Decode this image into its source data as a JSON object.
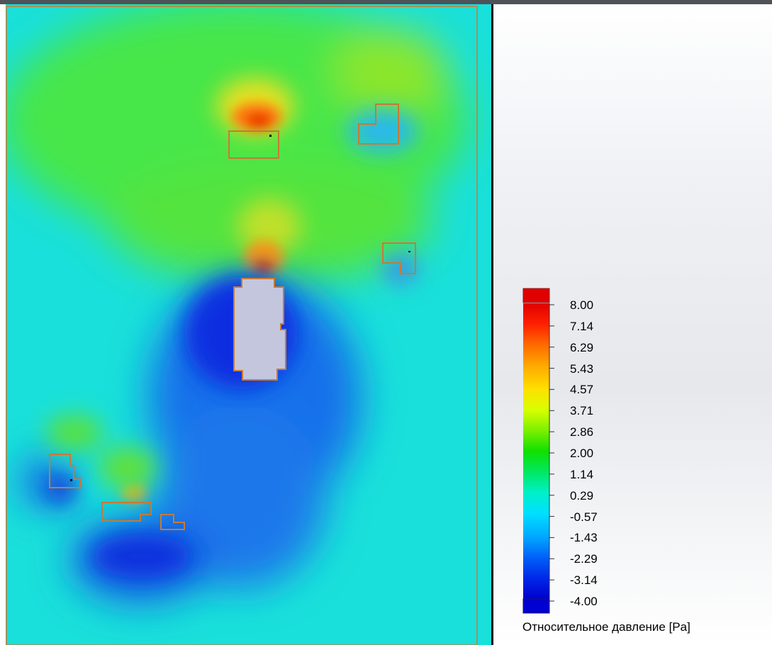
{
  "legend": {
    "title": "Относительное давление [Pa]",
    "ticks": [
      "8.00",
      "7.14",
      "6.29",
      "5.43",
      "4.57",
      "3.71",
      "2.86",
      "2.00",
      "1.14",
      "0.29",
      "-0.57",
      "-1.43",
      "-2.29",
      "-3.14",
      "-4.00"
    ],
    "colors": [
      "#e00000",
      "#ff3a00",
      "#ff8400",
      "#ffc800",
      "#ffff00",
      "#b8ff00",
      "#60f000",
      "#00e000",
      "#00f080",
      "#00f0d8",
      "#00d8ff",
      "#0090ff",
      "#0050f8",
      "#0018e0",
      "#0000d0"
    ]
  },
  "colors": {
    "background_field": "#19e0da",
    "outline": "#c77a35",
    "building_fill": "#c4c6de",
    "divider": "#000000"
  }
}
